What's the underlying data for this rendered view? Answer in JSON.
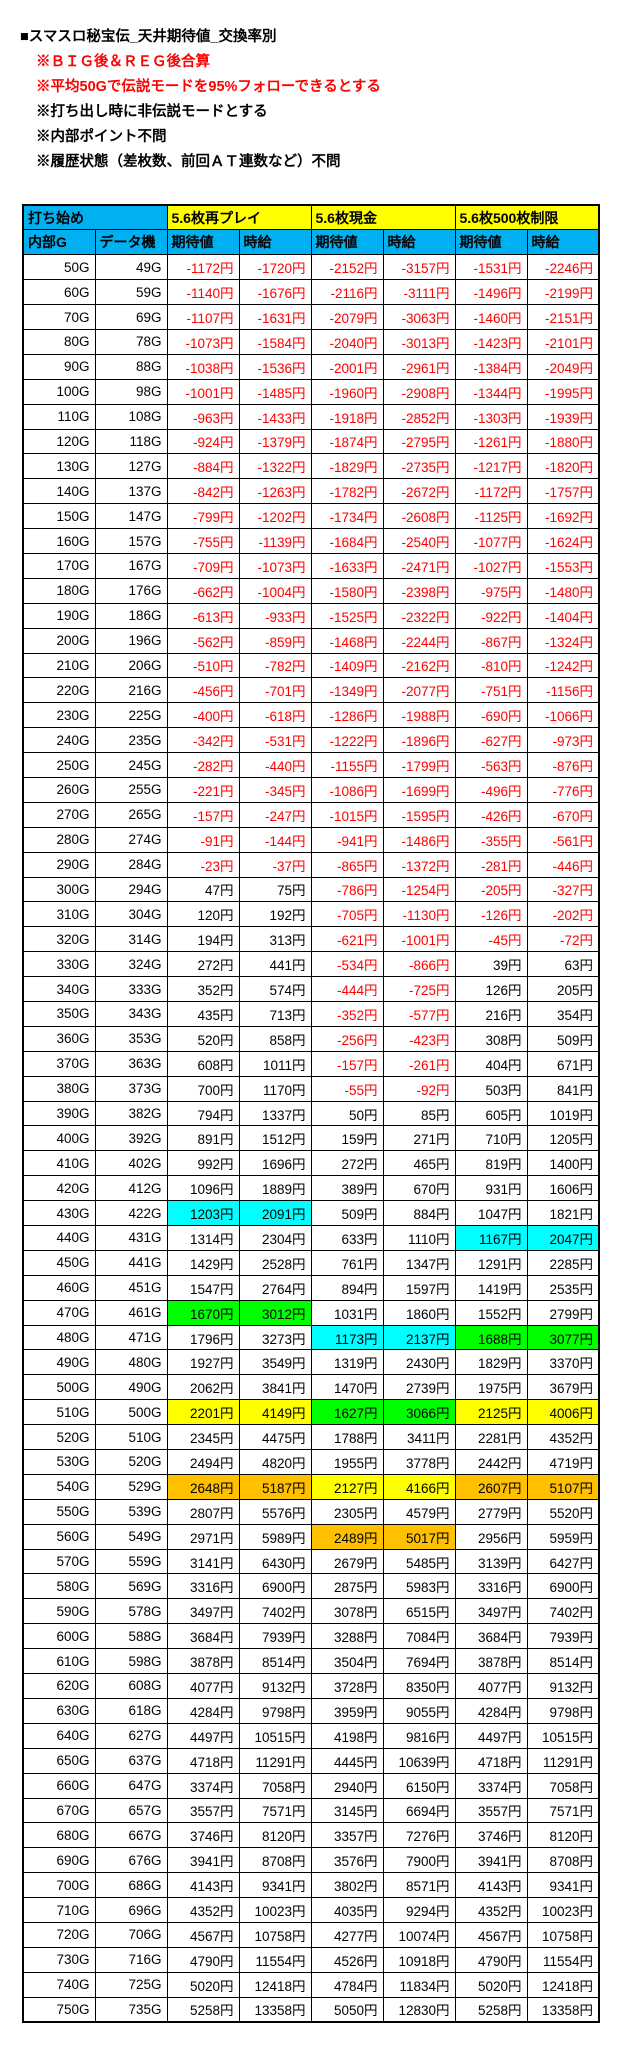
{
  "title": "■スマスロ秘宝伝_天井期待値_交換率別",
  "notes": [
    {
      "text": "※ＢＩＧ後＆ＲＥＧ後合算",
      "color": "red"
    },
    {
      "text": "※平均50Gで伝説モードを95%フォローできるとする",
      "color": "red"
    },
    {
      "text": "※打ち出し時に非伝説モードとする",
      "color": "black"
    },
    {
      "text": "※内部ポイント不問",
      "color": "black"
    },
    {
      "text": "※履歴状態（差枚数、前回ＡＴ連数など）不問",
      "color": "black"
    }
  ],
  "colors": {
    "header_blue": "#00B0F0",
    "header_yellow": "#FFFF00",
    "negative_text": "#FF0000",
    "highlight": {
      "cyan": "#00FFFF",
      "green": "#00FF00",
      "yellow": "#FFFF00",
      "orange": "#FFC000"
    }
  },
  "table": {
    "group_headers": [
      {
        "label": "打ち始め",
        "bg": "#00B0F0",
        "span": 2
      },
      {
        "label": "5.6枚再プレイ",
        "bg": "#FFFF00",
        "span": 2
      },
      {
        "label": "5.6枚現金",
        "bg": "#FFFF00",
        "span": 2
      },
      {
        "label": "5.6枚500枚制限",
        "bg": "#FFFF00",
        "span": 2
      }
    ],
    "col_headers": [
      "内部G",
      "データ機",
      "期待値",
      "時給",
      "期待値",
      "時給",
      "期待値",
      "時給"
    ],
    "highlights": {
      "430G": {
        "2": "cyan",
        "3": "cyan"
      },
      "440G": {
        "6": "cyan",
        "7": "cyan"
      },
      "470G": {
        "2": "green",
        "3": "green"
      },
      "480G": {
        "4": "cyan",
        "5": "cyan",
        "6": "green",
        "7": "green"
      },
      "510G": {
        "2": "yellow",
        "3": "yellow",
        "4": "green",
        "5": "green",
        "6": "yellow",
        "7": "yellow"
      },
      "540G": {
        "2": "orange",
        "3": "orange",
        "4": "yellow",
        "5": "yellow",
        "6": "orange",
        "7": "orange"
      },
      "560G": {
        "4": "orange",
        "5": "orange"
      }
    },
    "rows": [
      [
        "50G",
        "49G",
        "-1172円",
        "-1720円",
        "-2152円",
        "-3157円",
        "-1531円",
        "-2246円"
      ],
      [
        "60G",
        "59G",
        "-1140円",
        "-1676円",
        "-2116円",
        "-3111円",
        "-1496円",
        "-2199円"
      ],
      [
        "70G",
        "69G",
        "-1107円",
        "-1631円",
        "-2079円",
        "-3063円",
        "-1460円",
        "-2151円"
      ],
      [
        "80G",
        "78G",
        "-1073円",
        "-1584円",
        "-2040円",
        "-3013円",
        "-1423円",
        "-2101円"
      ],
      [
        "90G",
        "88G",
        "-1038円",
        "-1536円",
        "-2001円",
        "-2961円",
        "-1384円",
        "-2049円"
      ],
      [
        "100G",
        "98G",
        "-1001円",
        "-1485円",
        "-1960円",
        "-2908円",
        "-1344円",
        "-1995円"
      ],
      [
        "110G",
        "108G",
        "-963円",
        "-1433円",
        "-1918円",
        "-2852円",
        "-1303円",
        "-1939円"
      ],
      [
        "120G",
        "118G",
        "-924円",
        "-1379円",
        "-1874円",
        "-2795円",
        "-1261円",
        "-1880円"
      ],
      [
        "130G",
        "127G",
        "-884円",
        "-1322円",
        "-1829円",
        "-2735円",
        "-1217円",
        "-1820円"
      ],
      [
        "140G",
        "137G",
        "-842円",
        "-1263円",
        "-1782円",
        "-2672円",
        "-1172円",
        "-1757円"
      ],
      [
        "150G",
        "147G",
        "-799円",
        "-1202円",
        "-1734円",
        "-2608円",
        "-1125円",
        "-1692円"
      ],
      [
        "160G",
        "157G",
        "-755円",
        "-1139円",
        "-1684円",
        "-2540円",
        "-1077円",
        "-1624円"
      ],
      [
        "170G",
        "167G",
        "-709円",
        "-1073円",
        "-1633円",
        "-2471円",
        "-1027円",
        "-1553円"
      ],
      [
        "180G",
        "176G",
        "-662円",
        "-1004円",
        "-1580円",
        "-2398円",
        "-975円",
        "-1480円"
      ],
      [
        "190G",
        "186G",
        "-613円",
        "-933円",
        "-1525円",
        "-2322円",
        "-922円",
        "-1404円"
      ],
      [
        "200G",
        "196G",
        "-562円",
        "-859円",
        "-1468円",
        "-2244円",
        "-867円",
        "-1324円"
      ],
      [
        "210G",
        "206G",
        "-510円",
        "-782円",
        "-1409円",
        "-2162円",
        "-810円",
        "-1242円"
      ],
      [
        "220G",
        "216G",
        "-456円",
        "-701円",
        "-1349円",
        "-2077円",
        "-751円",
        "-1156円"
      ],
      [
        "230G",
        "225G",
        "-400円",
        "-618円",
        "-1286円",
        "-1988円",
        "-690円",
        "-1066円"
      ],
      [
        "240G",
        "235G",
        "-342円",
        "-531円",
        "-1222円",
        "-1896円",
        "-627円",
        "-973円"
      ],
      [
        "250G",
        "245G",
        "-282円",
        "-440円",
        "-1155円",
        "-1799円",
        "-563円",
        "-876円"
      ],
      [
        "260G",
        "255G",
        "-221円",
        "-345円",
        "-1086円",
        "-1699円",
        "-496円",
        "-776円"
      ],
      [
        "270G",
        "265G",
        "-157円",
        "-247円",
        "-1015円",
        "-1595円",
        "-426円",
        "-670円"
      ],
      [
        "280G",
        "274G",
        "-91円",
        "-144円",
        "-941円",
        "-1486円",
        "-355円",
        "-561円"
      ],
      [
        "290G",
        "284G",
        "-23円",
        "-37円",
        "-865円",
        "-1372円",
        "-281円",
        "-446円"
      ],
      [
        "300G",
        "294G",
        "47円",
        "75円",
        "-786円",
        "-1254円",
        "-205円",
        "-327円"
      ],
      [
        "310G",
        "304G",
        "120円",
        "192円",
        "-705円",
        "-1130円",
        "-126円",
        "-202円"
      ],
      [
        "320G",
        "314G",
        "194円",
        "313円",
        "-621円",
        "-1001円",
        "-45円",
        "-72円"
      ],
      [
        "330G",
        "324G",
        "272円",
        "441円",
        "-534円",
        "-866円",
        "39円",
        "63円"
      ],
      [
        "340G",
        "333G",
        "352円",
        "574円",
        "-444円",
        "-725円",
        "126円",
        "205円"
      ],
      [
        "350G",
        "343G",
        "435円",
        "713円",
        "-352円",
        "-577円",
        "216円",
        "354円"
      ],
      [
        "360G",
        "353G",
        "520円",
        "858円",
        "-256円",
        "-423円",
        "308円",
        "509円"
      ],
      [
        "370G",
        "363G",
        "608円",
        "1011円",
        "-157円",
        "-261円",
        "404円",
        "671円"
      ],
      [
        "380G",
        "373G",
        "700円",
        "1170円",
        "-55円",
        "-92円",
        "503円",
        "841円"
      ],
      [
        "390G",
        "382G",
        "794円",
        "1337円",
        "50円",
        "85円",
        "605円",
        "1019円"
      ],
      [
        "400G",
        "392G",
        "891円",
        "1512円",
        "159円",
        "271円",
        "710円",
        "1205円"
      ],
      [
        "410G",
        "402G",
        "992円",
        "1696円",
        "272円",
        "465円",
        "819円",
        "1400円"
      ],
      [
        "420G",
        "412G",
        "1096円",
        "1889円",
        "389円",
        "670円",
        "931円",
        "1606円"
      ],
      [
        "430G",
        "422G",
        "1203円",
        "2091円",
        "509円",
        "884円",
        "1047円",
        "1821円"
      ],
      [
        "440G",
        "431G",
        "1314円",
        "2304円",
        "633円",
        "1110円",
        "1167円",
        "2047円"
      ],
      [
        "450G",
        "441G",
        "1429円",
        "2528円",
        "761円",
        "1347円",
        "1291円",
        "2285円"
      ],
      [
        "460G",
        "451G",
        "1547円",
        "2764円",
        "894円",
        "1597円",
        "1419円",
        "2535円"
      ],
      [
        "470G",
        "461G",
        "1670円",
        "3012円",
        "1031円",
        "1860円",
        "1552円",
        "2799円"
      ],
      [
        "480G",
        "471G",
        "1796円",
        "3273円",
        "1173円",
        "2137円",
        "1688円",
        "3077円"
      ],
      [
        "490G",
        "480G",
        "1927円",
        "3549円",
        "1319円",
        "2430円",
        "1829円",
        "3370円"
      ],
      [
        "500G",
        "490G",
        "2062円",
        "3841円",
        "1470円",
        "2739円",
        "1975円",
        "3679円"
      ],
      [
        "510G",
        "500G",
        "2201円",
        "4149円",
        "1627円",
        "3066円",
        "2125円",
        "4006円"
      ],
      [
        "520G",
        "510G",
        "2345円",
        "4475円",
        "1788円",
        "3411円",
        "2281円",
        "4352円"
      ],
      [
        "530G",
        "520G",
        "2494円",
        "4820円",
        "1955円",
        "3778円",
        "2442円",
        "4719円"
      ],
      [
        "540G",
        "529G",
        "2648円",
        "5187円",
        "2127円",
        "4166円",
        "2607円",
        "5107円"
      ],
      [
        "550G",
        "539G",
        "2807円",
        "5576円",
        "2305円",
        "4579円",
        "2779円",
        "5520円"
      ],
      [
        "560G",
        "549G",
        "2971円",
        "5989円",
        "2489円",
        "5017円",
        "2956円",
        "5959円"
      ],
      [
        "570G",
        "559G",
        "3141円",
        "6430円",
        "2679円",
        "5485円",
        "3139円",
        "6427円"
      ],
      [
        "580G",
        "569G",
        "3316円",
        "6900円",
        "2875円",
        "5983円",
        "3316円",
        "6900円"
      ],
      [
        "590G",
        "578G",
        "3497円",
        "7402円",
        "3078円",
        "6515円",
        "3497円",
        "7402円"
      ],
      [
        "600G",
        "588G",
        "3684円",
        "7939円",
        "3288円",
        "7084円",
        "3684円",
        "7939円"
      ],
      [
        "610G",
        "598G",
        "3878円",
        "8514円",
        "3504円",
        "7694円",
        "3878円",
        "8514円"
      ],
      [
        "620G",
        "608G",
        "4077円",
        "9132円",
        "3728円",
        "8350円",
        "4077円",
        "9132円"
      ],
      [
        "630G",
        "618G",
        "4284円",
        "9798円",
        "3959円",
        "9055円",
        "4284円",
        "9798円"
      ],
      [
        "640G",
        "627G",
        "4497円",
        "10515円",
        "4198円",
        "9816円",
        "4497円",
        "10515円"
      ],
      [
        "650G",
        "637G",
        "4718円",
        "11291円",
        "4445円",
        "10639円",
        "4718円",
        "11291円"
      ],
      [
        "660G",
        "647G",
        "3374円",
        "7058円",
        "2940円",
        "6150円",
        "3374円",
        "7058円"
      ],
      [
        "670G",
        "657G",
        "3557円",
        "7571円",
        "3145円",
        "6694円",
        "3557円",
        "7571円"
      ],
      [
        "680G",
        "667G",
        "3746円",
        "8120円",
        "3357円",
        "7276円",
        "3746円",
        "8120円"
      ],
      [
        "690G",
        "676G",
        "3941円",
        "8708円",
        "3576円",
        "7900円",
        "3941円",
        "8708円"
      ],
      [
        "700G",
        "686G",
        "4143円",
        "9341円",
        "3802円",
        "8571円",
        "4143円",
        "9341円"
      ],
      [
        "710G",
        "696G",
        "4352円",
        "10023円",
        "4035円",
        "9294円",
        "4352円",
        "10023円"
      ],
      [
        "720G",
        "706G",
        "4567円",
        "10758円",
        "4277円",
        "10074円",
        "4567円",
        "10758円"
      ],
      [
        "730G",
        "716G",
        "4790円",
        "11554円",
        "4526円",
        "10918円",
        "4790円",
        "11554円"
      ],
      [
        "740G",
        "725G",
        "5020円",
        "12418円",
        "4784円",
        "11834円",
        "5020円",
        "12418円"
      ],
      [
        "750G",
        "735G",
        "5258円",
        "13358円",
        "5050円",
        "12830円",
        "5258円",
        "13358円"
      ]
    ]
  }
}
